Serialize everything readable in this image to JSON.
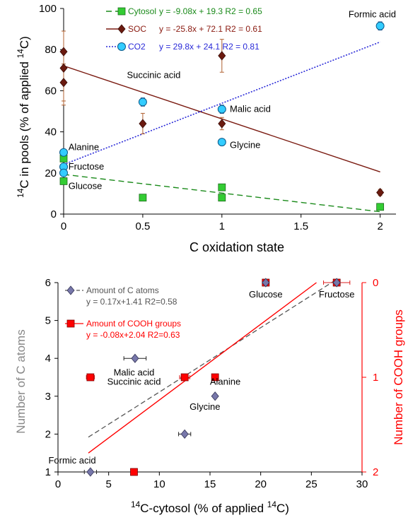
{
  "chart_data": [
    {
      "type": "scatter",
      "title": "",
      "xlabel": "C oxidation state",
      "ylabel": "14C in pools (% of applied 14C)",
      "xlim": [
        0,
        2.1
      ],
      "ylim": [
        0,
        100
      ],
      "xticks": [
        "0",
        "0.5",
        "1",
        "1.5",
        "2"
      ],
      "yticks": [
        "0",
        "20",
        "40",
        "60",
        "80",
        "100"
      ],
      "legend_position": "top-left",
      "colors": {
        "cytosol": "#33cc33",
        "soc": "#6b1a0f",
        "co2": "#33ccff",
        "cytosol_line": "#1a8a1a",
        "soc_line": "#7a1a10",
        "co2_line": "#2a2ad8",
        "soc_error": "#b06030"
      },
      "series": [
        {
          "name": "Cytosol",
          "equation": "y = -9.08x + 19.3 R2 = 0.65",
          "marker": "square",
          "points": [
            {
              "x": 0,
              "y": 27
            },
            {
              "x": 0,
              "y": 16
            },
            {
              "x": 0.5,
              "y": 8
            },
            {
              "x": 1,
              "y": 8
            },
            {
              "x": 1,
              "y": 13
            },
            {
              "x": 2,
              "y": 3.5
            }
          ],
          "fit": {
            "slope": -9.08,
            "intercept": 19.3
          }
        },
        {
          "name": "SOC",
          "equation": "y = -25.8x + 72.1 R2 = 0.61",
          "marker": "diamond",
          "points": [
            {
              "x": 0,
              "y": 79,
              "err": 0
            },
            {
              "x": 0,
              "y": 71,
              "err": 18
            },
            {
              "x": 0,
              "y": 64,
              "err": 9
            },
            {
              "x": 0.5,
              "y": 44,
              "err": 5
            },
            {
              "x": 1,
              "y": 77,
              "err": 8
            },
            {
              "x": 1,
              "y": 44,
              "err": 3
            },
            {
              "x": 2,
              "y": 10.5,
              "err": 1.5
            }
          ],
          "fit": {
            "slope": -25.8,
            "intercept": 72.1
          }
        },
        {
          "name": "CO2",
          "equation": "y = 29.8x + 24.1 R2 = 0.81",
          "marker": "circle",
          "points": [
            {
              "x": 0,
              "y": 30
            },
            {
              "x": 0,
              "y": 23
            },
            {
              "x": 0,
              "y": 20
            },
            {
              "x": 0.5,
              "y": 54.5,
              "err": 2
            },
            {
              "x": 1,
              "y": 51,
              "err": 2
            },
            {
              "x": 1,
              "y": 35
            },
            {
              "x": 2,
              "y": 91.5,
              "err": 2
            }
          ],
          "fit": {
            "slope": 29.8,
            "intercept": 24.1
          }
        }
      ],
      "annotations": [
        {
          "text": "Formic acid",
          "x": 1.95,
          "y": 97
        },
        {
          "text": "Succinic acid",
          "x": 0.4,
          "y": 67.5
        },
        {
          "text": "Malic acid",
          "x": 1.05,
          "y": 51
        },
        {
          "text": "Glycine",
          "x": 1.05,
          "y": 33.5
        },
        {
          "text": "Alanine",
          "x": 0.03,
          "y": 32.5
        },
        {
          "text": "Fructose",
          "x": 0.03,
          "y": 23
        },
        {
          "text": "Glucose",
          "x": 0.03,
          "y": 13.5
        }
      ]
    },
    {
      "type": "scatter",
      "title": "",
      "xlabel": "14C-cytosol (% of applied 14C)",
      "ylabel": "Number of C atoms",
      "y2label": "Number of COOH groups",
      "xlim": [
        0,
        30
      ],
      "ylim": [
        1,
        6
      ],
      "y2lim": [
        2,
        0
      ],
      "xticks": [
        "0",
        "5",
        "10",
        "15",
        "20",
        "25",
        "30"
      ],
      "yticks": [
        "1",
        "2",
        "3",
        "4",
        "5",
        "6"
      ],
      "y2ticks": [
        "2",
        "1",
        "0"
      ],
      "legend_position": "top-left",
      "colors": {
        "c_atoms": "#7777aa",
        "c_atoms_line": "#555555",
        "cooh": "#ff0000",
        "cooh_line": "#ff0000",
        "xerr": "#dd2020"
      },
      "series": [
        {
          "name": "Amount of C atoms",
          "equation": "y = 0.17x+1.41 R2=0.58",
          "marker": "diamond",
          "axis": "left",
          "points": [
            {
              "x": 3.2,
              "y": 1,
              "xerr": 0.6
            },
            {
              "x": 7.6,
              "y": 4,
              "xerr": 1.1
            },
            {
              "x": 12.5,
              "y": 2,
              "xerr": 0.6
            },
            {
              "x": 15.5,
              "y": 3
            },
            {
              "x": 20.5,
              "y": 6
            },
            {
              "x": 27.5,
              "y": 6
            }
          ],
          "fit": {
            "slope": 0.17,
            "intercept": 1.41,
            "x_range": [
              3,
              27.5
            ]
          }
        },
        {
          "name": "Amount of COOH groups",
          "equation": "y = -0.08x+2.04 R2=0.63",
          "marker": "square",
          "axis": "right",
          "points": [
            {
              "x": 3.2,
              "y": 1,
              "xerr": 0.4
            },
            {
              "x": 12.5,
              "y": 1,
              "xerr": 0.5
            },
            {
              "x": 15.5,
              "y": 1
            },
            {
              "x": 7.5,
              "y": 2,
              "xerr": 0.3
            },
            {
              "x": 20.5,
              "y": 0,
              "xerr": 0.3
            },
            {
              "x": 27.5,
              "y": 0,
              "xerr": 1.3
            }
          ],
          "fit": {
            "slope": -0.08,
            "intercept": 2.04,
            "x_range": [
              3,
              25.5
            ]
          }
        }
      ],
      "annotations": [
        {
          "text": "Glucose",
          "x": 20.5,
          "y": 5.68
        },
        {
          "text": "Fructose",
          "x": 27.5,
          "y": 5.68
        },
        {
          "text": "Malic acid",
          "x": 7.5,
          "y": 3.62
        },
        {
          "text": "Succinic acid",
          "x": 7.5,
          "y": 3.38
        },
        {
          "text": "Alanine",
          "x": 16.5,
          "y": 3.38
        },
        {
          "text": "Glycine",
          "x": 14.5,
          "y": 2.72
        },
        {
          "text": "Formic acid",
          "x": 1.4,
          "y": 1.3
        }
      ]
    }
  ]
}
